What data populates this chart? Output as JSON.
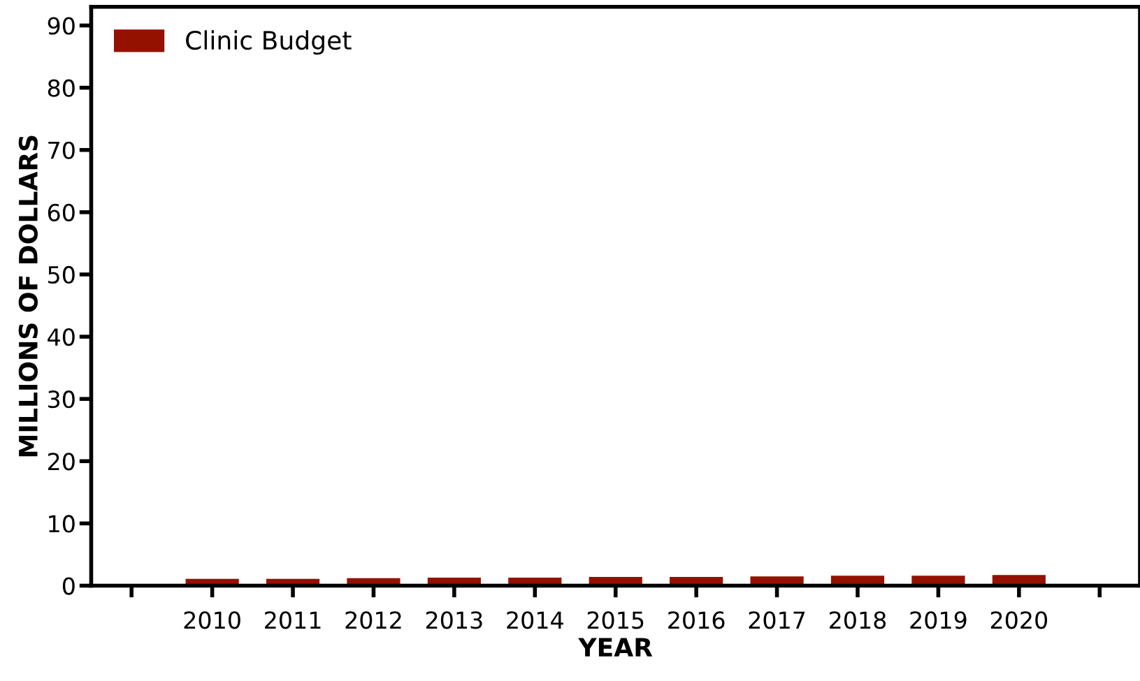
{
  "chart_data": {
    "type": "bar",
    "xlabel": "YEAR",
    "ylabel": "MILLIONS OF DOLLARS",
    "categories": [
      null,
      "2010",
      "2011",
      "2012",
      "2013",
      "2014",
      "2015",
      "2016",
      "2017",
      "2018",
      "2019",
      "2020",
      null
    ],
    "series": [
      {
        "name": "Clinic Budget",
        "color": "#941100",
        "values": [
          null,
          1.1,
          1.1,
          1.2,
          1.3,
          1.3,
          1.4,
          1.4,
          1.5,
          1.6,
          1.6,
          1.7,
          null
        ]
      }
    ],
    "ylim": [
      0,
      93
    ],
    "yticks": [
      0,
      10,
      20,
      30,
      40,
      50,
      60,
      70,
      80,
      90
    ],
    "grid": false,
    "legend": "top left"
  }
}
